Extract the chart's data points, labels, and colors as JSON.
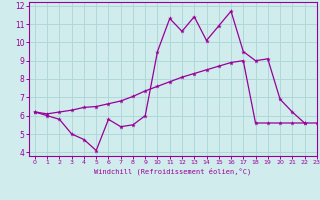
{
  "xlabel": "Windchill (Refroidissement éolien,°C)",
  "xlim": [
    -0.5,
    23
  ],
  "ylim": [
    3.8,
    12.2
  ],
  "yticks": [
    4,
    5,
    6,
    7,
    8,
    9,
    10,
    11,
    12
  ],
  "xticks": [
    0,
    1,
    2,
    3,
    4,
    5,
    6,
    7,
    8,
    9,
    10,
    11,
    12,
    13,
    14,
    15,
    16,
    17,
    18,
    19,
    20,
    21,
    22,
    23
  ],
  "background_color": "#d0ecec",
  "line_color": "#990099",
  "grid_color": "#b0d8d8",
  "line1_x": [
    0,
    1,
    2,
    3,
    4,
    5,
    6,
    7,
    8,
    9,
    10,
    11,
    12,
    13,
    14,
    15,
    16,
    17,
    18,
    19,
    20,
    21,
    22
  ],
  "line1_y": [
    6.2,
    6.0,
    5.8,
    5.0,
    4.7,
    4.1,
    5.8,
    5.4,
    5.5,
    6.0,
    9.5,
    11.3,
    10.6,
    11.4,
    10.1,
    10.9,
    11.7,
    9.5,
    9.0,
    9.1,
    6.9,
    6.2,
    5.6
  ],
  "line2_x": [
    0,
    1,
    2,
    3,
    4,
    5,
    6,
    7,
    8,
    9,
    10,
    11,
    12,
    13,
    14,
    15,
    16,
    17,
    18,
    19,
    20,
    21,
    22,
    23
  ],
  "line2_y": [
    6.2,
    6.1,
    6.2,
    6.3,
    6.45,
    6.5,
    6.65,
    6.8,
    7.05,
    7.35,
    7.6,
    7.85,
    8.1,
    8.3,
    8.5,
    8.7,
    8.9,
    9.0,
    5.6,
    5.6,
    5.6,
    5.6,
    5.6,
    5.6
  ]
}
